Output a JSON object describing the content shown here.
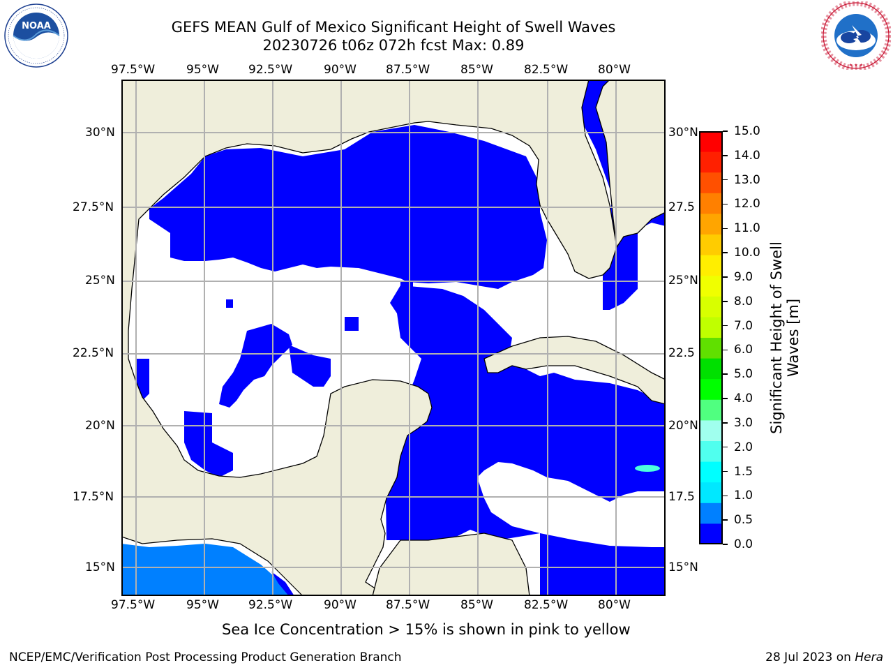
{
  "header": {
    "title_line1": "GEFS MEAN Gulf of Mexico Significant Height of Swell Waves",
    "title_line2": "20230726 t06z 072h fcst   Max: 0.89"
  },
  "logos": {
    "left": {
      "name": "noaa-logo",
      "text": "NOAA",
      "ring_text": "NATIONAL OCEANIC AND ATMOSPHERIC ADMINISTRATION · U.S. DEPARTMENT OF COMMERCE"
    },
    "right": {
      "name": "national-weather-service-logo",
      "ring_text": "NATIONAL WEATHER SERVICE"
    }
  },
  "map": {
    "lon_ticks": [
      "97.5°W",
      "95°W",
      "92.5°W",
      "90°W",
      "87.5°W",
      "85°W",
      "82.5°W",
      "80°W"
    ],
    "lat_ticks": [
      "30°N",
      "27.5°N",
      "25°N",
      "22.5°N",
      "20°N",
      "17.5°N",
      "15°N"
    ],
    "lat_ticks_right": [
      "30°N",
      "27.5",
      "25°N",
      "22.5",
      "20°N",
      "17.5",
      "15°N"
    ],
    "colors": {
      "land": "#efeedb",
      "band_0_0_5": "#0000ff",
      "band_0_5_1_0": "#0080ff",
      "band_1_5_2_0": "#4dffdd",
      "grid": "#b0b0b0"
    }
  },
  "colorbar": {
    "label": "Significant Height of Swell Waves [m]",
    "label_line1": "Significant Height of Swell",
    "label_line2": "Waves [m]",
    "ticks": [
      "15.0",
      "14.0",
      "13.0",
      "12.0",
      "11.0",
      "10.0",
      "9.0",
      "8.0",
      "7.0",
      "6.0",
      "5.0",
      "4.0",
      "3.0",
      "2.0",
      "1.5",
      "1.0",
      "0.5",
      "0.0"
    ],
    "colors": [
      "#ff0000",
      "#ff2000",
      "#ff5000",
      "#ff8000",
      "#ffa500",
      "#ffcc00",
      "#ffee00",
      "#f0ff00",
      "#d8ff00",
      "#c0ff00",
      "#60e000",
      "#00e000",
      "#00ff00",
      "#50ff80",
      "#a0ffee",
      "#50ffee",
      "#00ffff",
      "#00e8ff",
      "#0080ff",
      "#0000ff"
    ]
  },
  "note": "Sea Ice Concentration > 15% is shown in pink to yellow",
  "footer": {
    "left": "NCEP/EMC/Verification Post Processing Product Generation Branch",
    "right_prefix": "28 Jul 2023 on ",
    "right_host": "Hera"
  }
}
